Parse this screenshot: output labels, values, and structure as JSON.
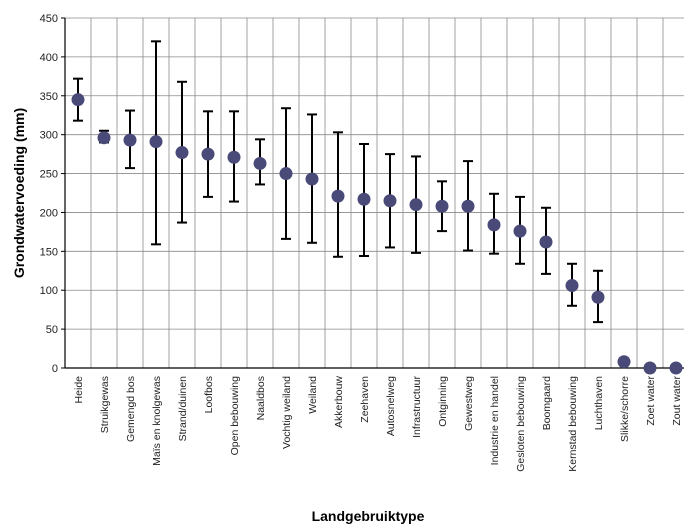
{
  "chart_data": {
    "type": "scatter",
    "title": "",
    "xlabel": "Landgebruiktype",
    "ylabel": "Grondwatervoeding (mm)",
    "ylim": [
      0,
      450
    ],
    "yticks": [
      0,
      50,
      100,
      150,
      200,
      250,
      300,
      350,
      400,
      450
    ],
    "grid": "both",
    "marker_color": "#4a4a78",
    "errorbar_color": "#000000",
    "categories": [
      "Heide",
      "Struikgewas",
      "Gemengd bos",
      "Maïs en knolgewas",
      "Strand/duinen",
      "Loofbos",
      "Open bebouwing",
      "Naaldbos",
      "Vochtig weiland",
      "Weiland",
      "Akkerbouw",
      "Zeehaven",
      "Autosnelweg",
      "Infrastructuur",
      "Ontginning",
      "Gewestweg",
      "Industrie en handel",
      "Gesloten bebouwing",
      "Boomgaard",
      "Kernstad bebouwing",
      "Luchthaven",
      "Slikke/schorre",
      "Zoet water",
      "Zout water"
    ],
    "values": [
      345,
      296,
      293,
      291,
      277,
      275,
      271,
      263,
      250,
      243,
      221,
      217,
      215,
      210,
      208,
      208,
      184,
      176,
      162,
      106,
      91,
      8,
      0,
      0
    ],
    "error_low": [
      318,
      290,
      257,
      159,
      187,
      220,
      214,
      236,
      166,
      161,
      143,
      144,
      155,
      148,
      176,
      151,
      147,
      134,
      121,
      80,
      59,
      null,
      null,
      null
    ],
    "error_high": [
      372,
      305,
      331,
      420,
      368,
      330,
      330,
      294,
      334,
      326,
      303,
      288,
      275,
      272,
      240,
      266,
      224,
      220,
      206,
      134,
      125,
      null,
      null,
      null
    ]
  }
}
